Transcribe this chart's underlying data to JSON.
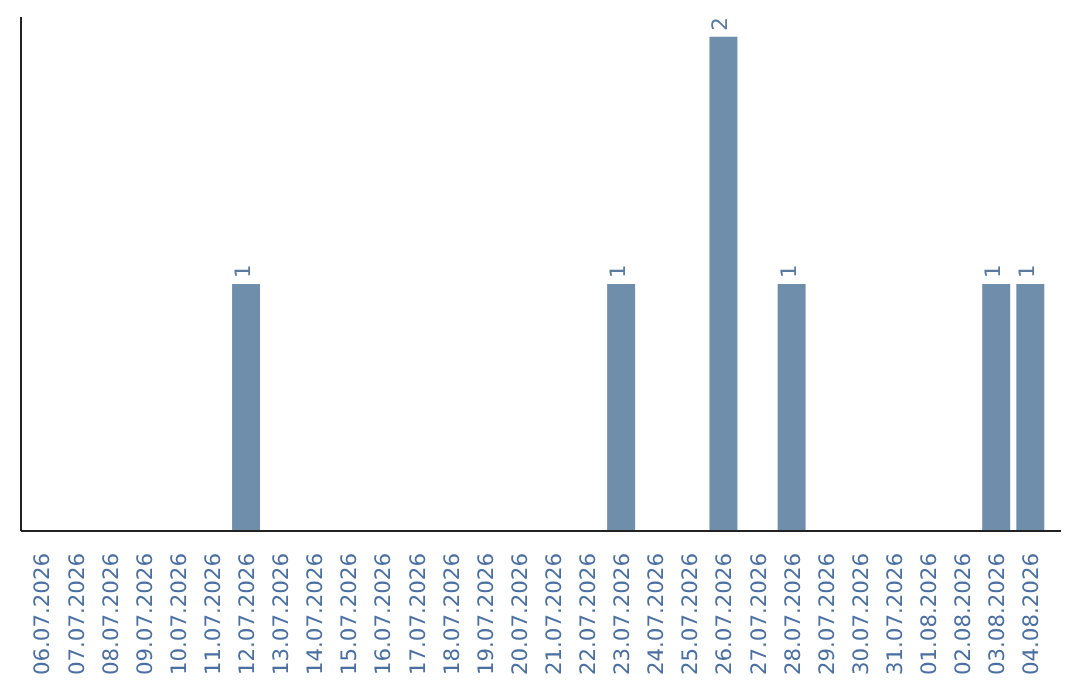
{
  "chart_data": {
    "type": "bar",
    "categories": [
      "06.07.2026",
      "07.07.2026",
      "08.07.2026",
      "09.07.2026",
      "10.07.2026",
      "11.07.2026",
      "12.07.2026",
      "13.07.2026",
      "14.07.2026",
      "15.07.2026",
      "16.07.2026",
      "17.07.2026",
      "18.07.2026",
      "19.07.2026",
      "20.07.2026",
      "21.07.2026",
      "22.07.2026",
      "23.07.2026",
      "24.07.2026",
      "25.07.2026",
      "26.07.2026",
      "27.07.2026",
      "28.07.2026",
      "29.07.2026",
      "30.07.2026",
      "31.07.2026",
      "01.08.2026",
      "02.08.2026",
      "03.08.2026",
      "04.08.2026"
    ],
    "values": [
      0,
      0,
      0,
      0,
      0,
      0,
      1,
      0,
      0,
      0,
      0,
      0,
      0,
      0,
      0,
      0,
      0,
      1,
      0,
      0,
      2,
      0,
      1,
      0,
      0,
      0,
      0,
      0,
      1,
      1
    ],
    "value_labels": [
      null,
      null,
      null,
      null,
      null,
      null,
      "1",
      null,
      null,
      null,
      null,
      null,
      null,
      null,
      null,
      null,
      null,
      "1",
      null,
      null,
      "2",
      null,
      "1",
      null,
      null,
      null,
      null,
      null,
      "1",
      "1"
    ],
    "color": "#6f8eac",
    "ylim": [
      0,
      2.08
    ],
    "grid": false
  }
}
